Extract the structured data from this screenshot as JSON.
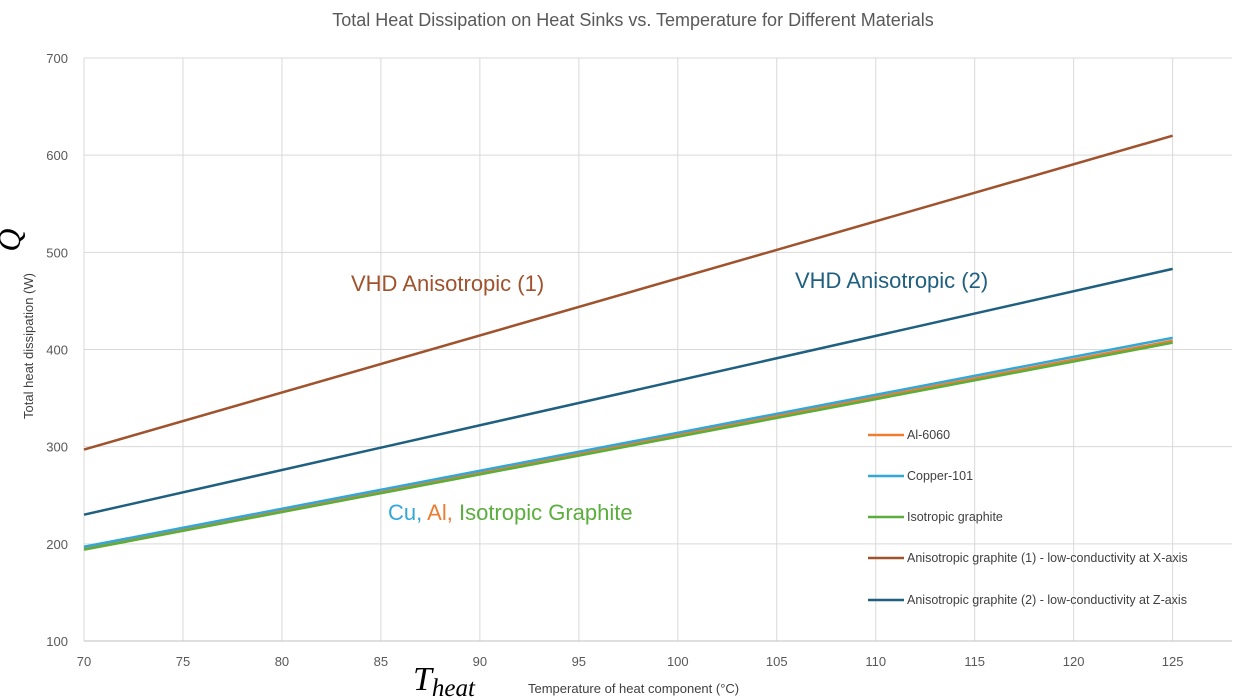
{
  "chart_data": {
    "type": "line",
    "title": "Total Heat Dissipation on Heat Sinks vs. Temperature for Different Materials",
    "xlabel": "Temperature of heat component (°C)",
    "ylabel": "Total heat dissipation (W)",
    "x_symbol": "T",
    "x_symbol_sub": "heat",
    "y_symbol": "Q",
    "xlim": [
      70,
      128
    ],
    "ylim": [
      100,
      700
    ],
    "x_ticks": [
      70,
      75,
      80,
      85,
      90,
      95,
      100,
      105,
      110,
      115,
      120,
      125
    ],
    "y_ticks": [
      100,
      200,
      300,
      400,
      500,
      600,
      700
    ],
    "grid": true,
    "legend_position": "right",
    "series": [
      {
        "name": "Al-6060",
        "color": "#ED7D31",
        "x": [
          70,
          125
        ],
        "y": [
          196,
          409
        ]
      },
      {
        "name": "Copper-101",
        "color": "#31A8D8",
        "x": [
          70,
          125
        ],
        "y": [
          197,
          412
        ]
      },
      {
        "name": "Isotropic graphite",
        "color": "#5BAE3C",
        "x": [
          70,
          125
        ],
        "y": [
          194,
          407
        ]
      },
      {
        "name": "Anisotropic graphite (1) - low-conductivity at X-axis",
        "color": "#A0522D",
        "x": [
          70,
          125
        ],
        "y": [
          297,
          620
        ]
      },
      {
        "name": "Anisotropic graphite (2) - low-conductivity at Z-axis",
        "color": "#1F5F7F",
        "x": [
          70,
          125
        ],
        "y": [
          230,
          483
        ]
      }
    ],
    "annotations": {
      "vhd1": {
        "text": "VHD Anisotropic (1)",
        "color": "#A0522D"
      },
      "vhd2": {
        "text": "VHD Anisotropic (2)",
        "color": "#1F5F7F"
      },
      "cu": {
        "text": "Cu,",
        "color": "#31A8D8"
      },
      "al": {
        "text": "Al,",
        "color": "#ED7D31"
      },
      "iso": {
        "text": "Isotropic Graphite",
        "color": "#5BAE3C"
      }
    }
  }
}
